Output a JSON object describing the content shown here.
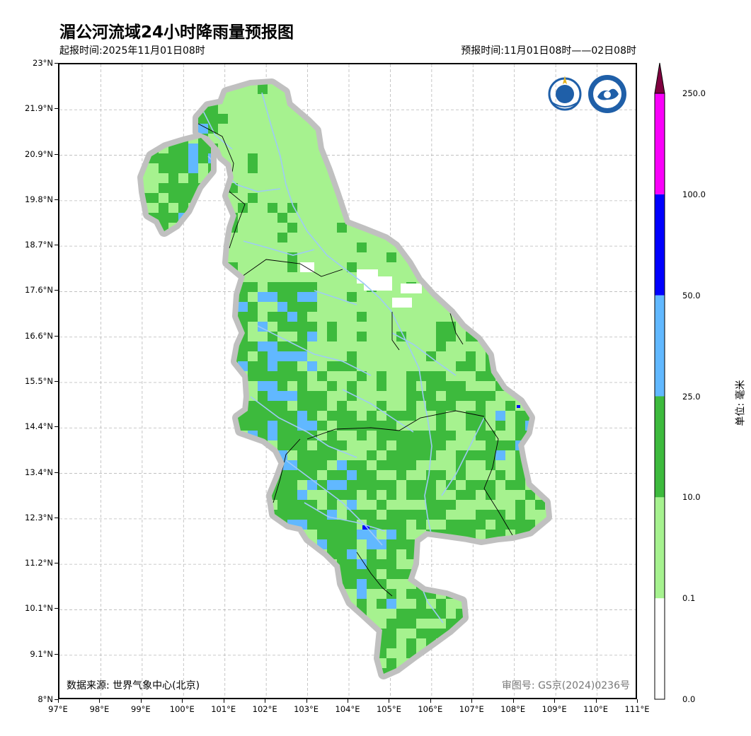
{
  "title": "湄公河流域24小时降雨量预报图",
  "issue_time": "起报时间:2025年11月01日08时",
  "valid_time": "预报时间:11月01日08时——02日08时",
  "data_source": "数据来源: 世界气象中心(北京)",
  "review_number": "审图号: GS京(2024)0236号",
  "logos": [
    "wmo-logo",
    "cma-logo"
  ],
  "axes": {
    "lat_labels": [
      "23°N",
      "21.9°N",
      "20.9°N",
      "19.8°N",
      "18.7°N",
      "17.6°N",
      "16.6°N",
      "15.5°N",
      "14.4°N",
      "13.4°N",
      "12.3°N",
      "11.2°N",
      "10.1°N",
      "9.1°N",
      "8°N"
    ],
    "lon_labels": [
      "97°E",
      "98°E",
      "99°E",
      "100°E",
      "101°E",
      "102°E",
      "103°E",
      "104°E",
      "105°E",
      "106°E",
      "107°E",
      "108°E",
      "109°E",
      "110°E",
      "111°E"
    ],
    "lat_range": [
      8,
      23
    ],
    "lon_range": [
      97,
      111
    ],
    "grid": "dashed"
  },
  "colorbar": {
    "unit": "单位: 毫米",
    "labels": [
      "0.0",
      "0.1",
      "10.0",
      "25.0",
      "50.0",
      "100.0",
      "250.0"
    ],
    "colors": [
      "#ffffff",
      "#a6f28f",
      "#3dba3d",
      "#61b8ff",
      "#0000ff",
      "#fa00fa",
      "#800040"
    ]
  },
  "colors": {
    "light_green": "#a6f28f",
    "green": "#3dba3d",
    "light_blue": "#61b8ff",
    "blue": "#0000ff",
    "river": "#9ecbf5",
    "boundary_halo": "#c0c0c0"
  }
}
